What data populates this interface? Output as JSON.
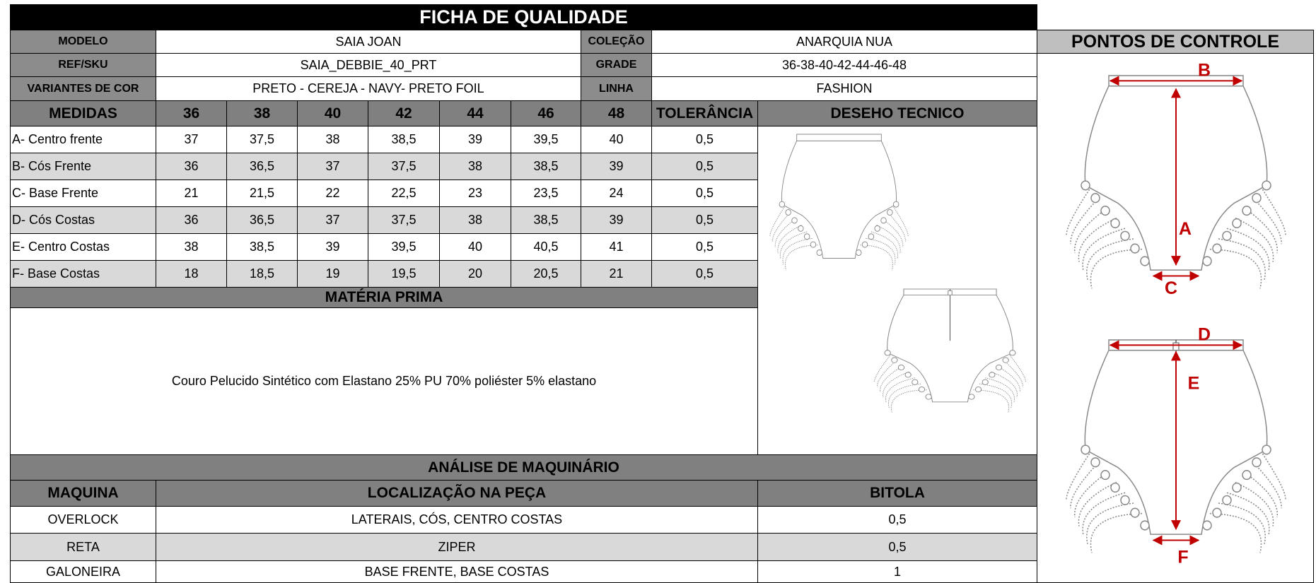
{
  "header": {
    "title": "FICHA DE QUALIDADE"
  },
  "info": [
    {
      "label": "MODELO",
      "value": "SAIA JOAN",
      "label2": "COLEÇÃO",
      "value2": "ANARQUIA NUA"
    },
    {
      "label": "REF/SKU",
      "value": "SAIA_DEBBIE_40_PRT",
      "label2": "GRADE",
      "value2": "36-38-40-42-44-46-48"
    },
    {
      "label": "VARIANTES DE COR",
      "value": "PRETO - CEREJA - NAVY- PRETO FOIL",
      "label2": "LINHA",
      "value2": "FASHION"
    }
  ],
  "measures": {
    "header": [
      "MEDIDAS",
      "36",
      "38",
      "40",
      "42",
      "44",
      "46",
      "48",
      "TOLERÂNCIA"
    ],
    "drawing_title": "DESEHO TECNICO",
    "rows": [
      [
        "A- Centro  frente",
        "37",
        "37,5",
        "38",
        "38,5",
        "39",
        "39,5",
        "40",
        "0,5"
      ],
      [
        "B- Cós Frente",
        "36",
        "36,5",
        "37",
        "37,5",
        "38",
        "38,5",
        "39",
        "0,5"
      ],
      [
        "C- Base Frente",
        "21",
        "21,5",
        "22",
        "22,5",
        "23",
        "23,5",
        "24",
        "0,5"
      ],
      [
        "D- Cós Costas",
        "36",
        "36,5",
        "37",
        "37,5",
        "38",
        "38,5",
        "39",
        "0,5"
      ],
      [
        "E- Centro Costas",
        "38",
        "38,5",
        "39",
        "39,5",
        "40",
        "40,5",
        "41",
        "0,5"
      ],
      [
        "F- Base Costas",
        "18",
        "18,5",
        "19",
        "19,5",
        "20",
        "20,5",
        "21",
        "0,5"
      ]
    ]
  },
  "material": {
    "title": "MATÉRIA  PRIMA",
    "text": "Couro Pelucido Sintético com Elastano 25% PU 70% poliéster 5% elastano"
  },
  "machinery": {
    "title": "ANÁLISE DE   MAQUINÁRIO",
    "header": [
      "MAQUINA",
      "LOCALIZAÇÃO NA PEÇA",
      "BITOLA"
    ],
    "rows": [
      [
        "OVERLOCK",
        "LATERAIS, CÓS, CENTRO COSTAS",
        "0,5"
      ],
      [
        "RETA",
        "ZIPER",
        "0,5"
      ],
      [
        "GALONEIRA",
        "BASE FRENTE, BASE COSTAS",
        "1"
      ]
    ]
  },
  "control": {
    "title": "PONTOS DE CONTROLE",
    "labels": [
      "B",
      "A",
      "C",
      "D",
      "E",
      "F"
    ]
  }
}
